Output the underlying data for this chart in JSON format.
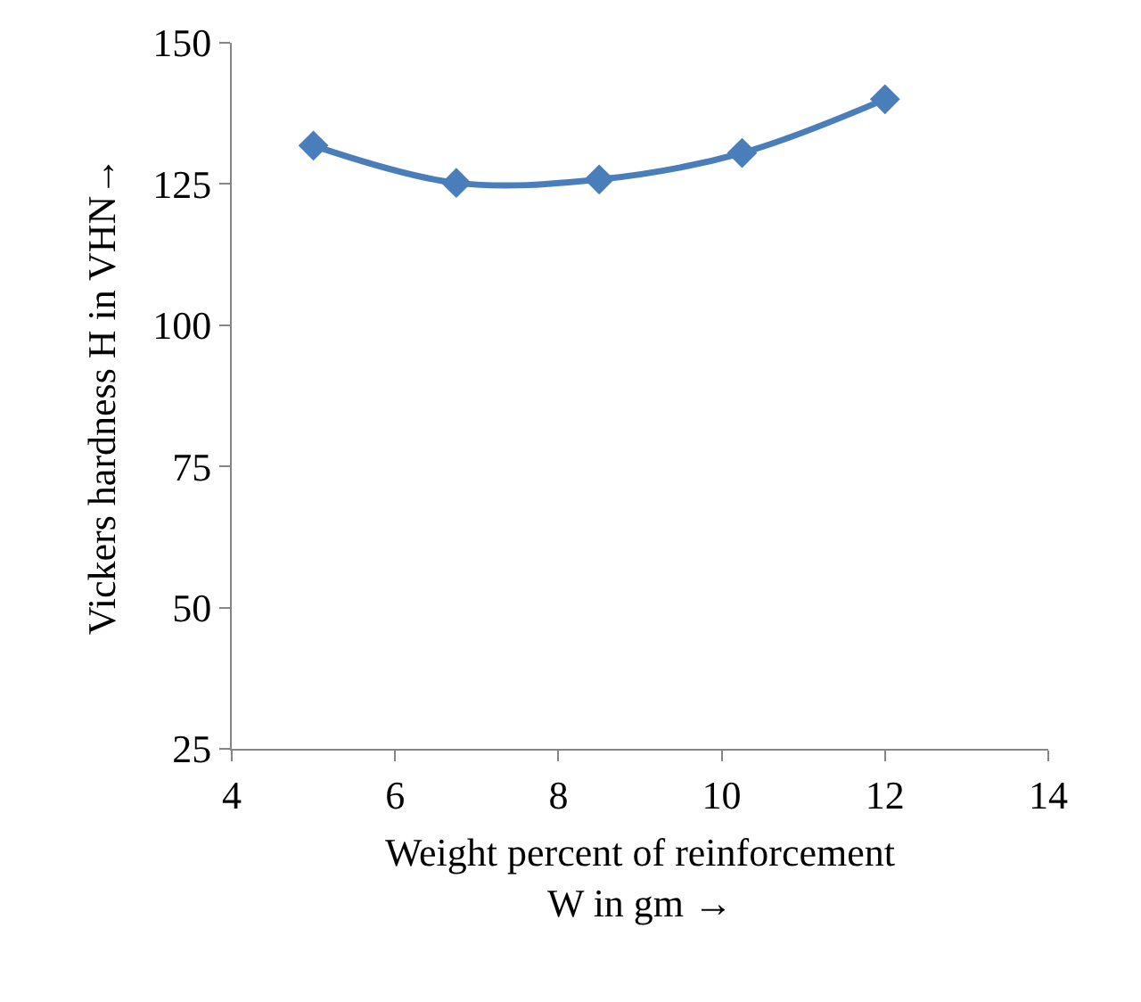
{
  "chart_data": {
    "type": "line",
    "x": [
      5,
      6.75,
      8.5,
      10.25,
      12
    ],
    "series": [
      {
        "color": "#4a7ebb",
        "values": [
          131.8,
          125.2,
          125.8,
          130.5,
          140
        ]
      }
    ],
    "xlabel": "Weight percent of reinforcement\nW in gm →",
    "ylabel": "Vickers hardness H in VHN→",
    "xlim": [
      4,
      14
    ],
    "xticks": [
      4,
      6,
      8,
      10,
      12,
      14
    ],
    "ylim": [
      25,
      150
    ],
    "yticks": [
      25,
      50,
      75,
      100,
      125,
      150
    ],
    "grid": false,
    "marker": "diamond",
    "line_style": "solid"
  }
}
